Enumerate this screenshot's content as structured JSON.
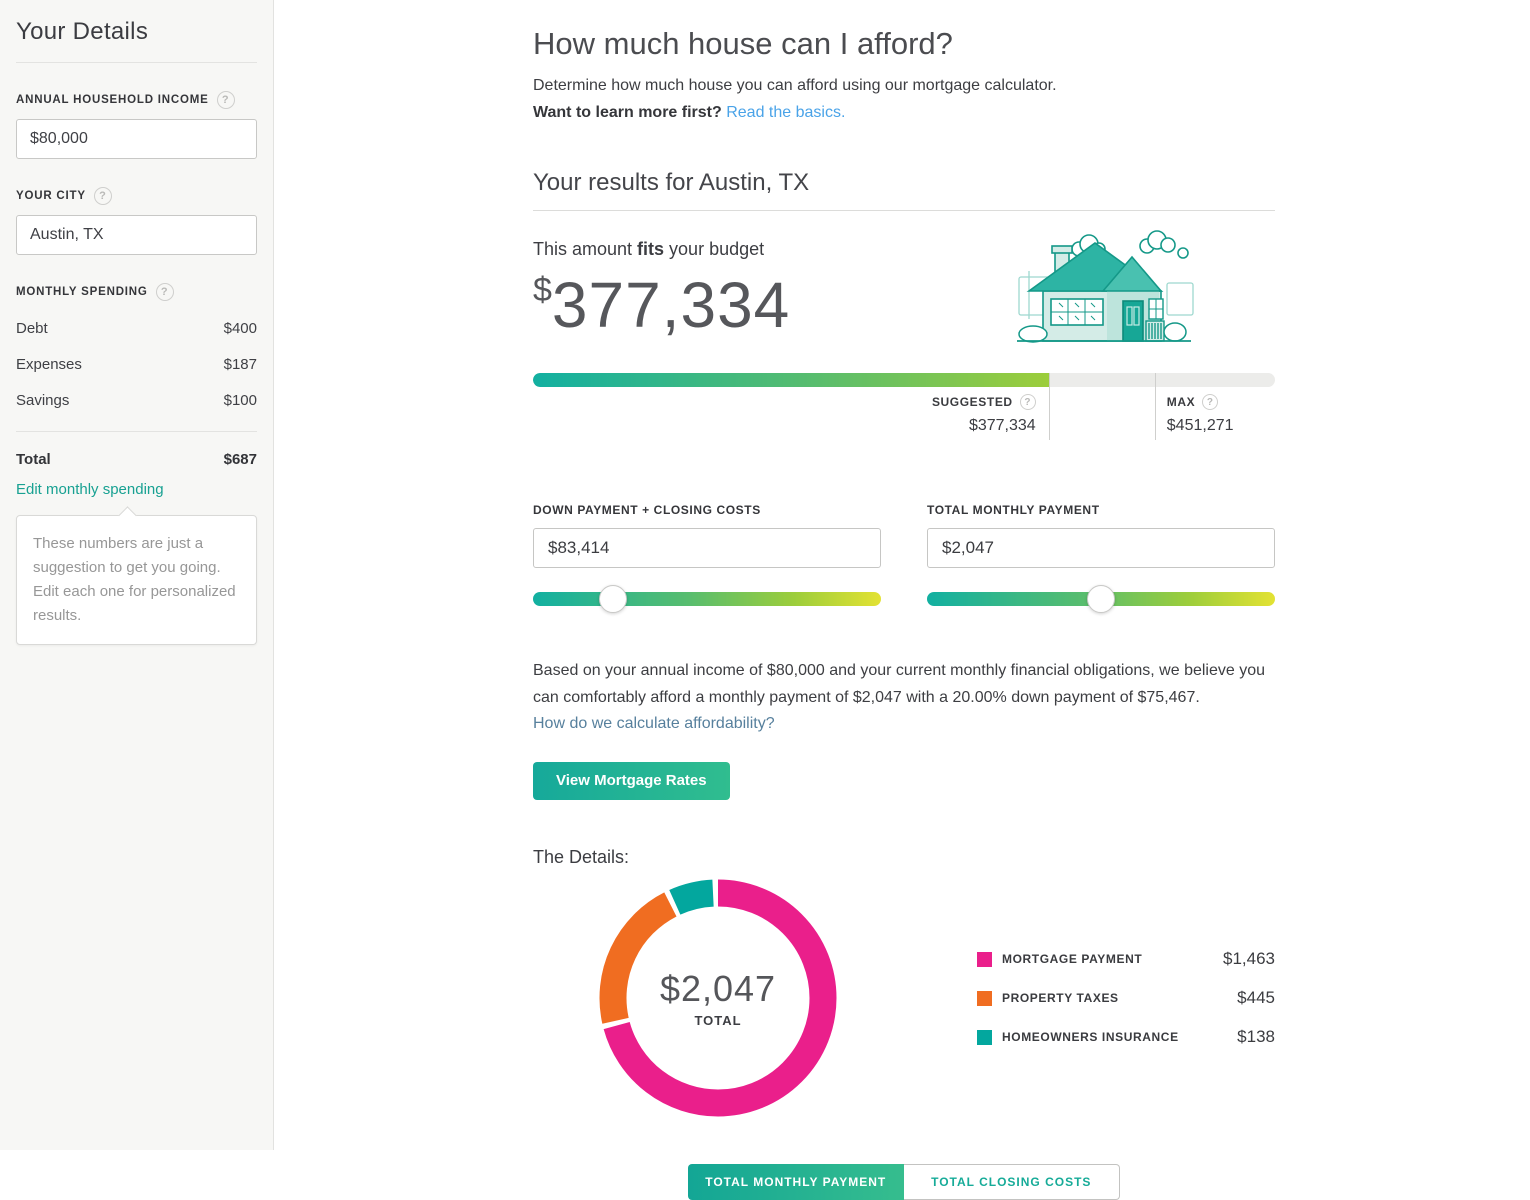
{
  "sidebar": {
    "title": "Your Details",
    "income_label": "ANNUAL HOUSEHOLD INCOME",
    "income_value": "$80,000",
    "city_label": "YOUR CITY",
    "city_value": "Austin, TX",
    "spending_label": "MONTHLY SPENDING",
    "spending_rows": [
      {
        "label": "Debt",
        "value": "$400"
      },
      {
        "label": "Expenses",
        "value": "$187"
      },
      {
        "label": "Savings",
        "value": "$100"
      }
    ],
    "total_label": "Total",
    "total_value": "$687",
    "edit_link": "Edit monthly spending",
    "tooltip": "These numbers are just a suggestion to get you going. Edit each one for personalized results."
  },
  "header": {
    "title": "How much house can I afford?",
    "subtitle": "Determine how much house you can afford using our mortgage calculator.",
    "learn_more_prompt": "Want to learn more first?",
    "learn_more_link": "Read the basics."
  },
  "results": {
    "heading": "Your results for Austin, TX",
    "fit_prefix": "This amount ",
    "fit_word": "fits",
    "fit_suffix": " your budget",
    "amount_currency": "$",
    "amount": "377,334",
    "bar": {
      "suggested_label": "SUGGESTED",
      "suggested_value": "$377,334",
      "max_label": "MAX",
      "max_value": "$451,271",
      "fill_percent": 69.5,
      "max_percent": 83.8
    },
    "down_payment_label": "DOWN PAYMENT + CLOSING COSTS",
    "down_payment_value": "$83,414",
    "down_payment_slider_percent": 23,
    "monthly_payment_label": "TOTAL MONTHLY PAYMENT",
    "monthly_payment_value": "$2,047",
    "monthly_payment_slider_percent": 50,
    "explanation": "Based on your annual income of $80,000 and your current monthly financial obligations, we believe you can comfortably afford a monthly payment of $2,047 with a 20.00% down payment of $75,467.",
    "calc_link": "How do we calculate affordability?",
    "cta_button": "View Mortgage Rates"
  },
  "details": {
    "heading": "The Details:",
    "center_value": "$2,047",
    "center_label": "TOTAL",
    "tabs": [
      {
        "label": "TOTAL MONTHLY PAYMENT",
        "active": true
      },
      {
        "label": "TOTAL CLOSING COSTS",
        "active": false
      }
    ]
  },
  "chart_data": {
    "type": "pie",
    "donut": true,
    "title": "The Details:",
    "center_text": "$2,047 TOTAL",
    "total": 2047,
    "legend_position": "right",
    "series": [
      {
        "name": "MORTGAGE PAYMENT",
        "value": 1463,
        "display": "$1,463",
        "color": "#ea1f8b"
      },
      {
        "name": "PROPERTY TAXES",
        "value": 445,
        "display": "$445",
        "color": "#f06d21"
      },
      {
        "name": "HOMEOWNERS INSURANCE",
        "value": 138,
        "display": "$138",
        "color": "#03a79e"
      }
    ]
  },
  "colors": {
    "accent_teal": "#12b0a1",
    "accent_green": "#9ccd3b",
    "accent_yellow": "#e3e233",
    "link_blue": "#4aa3e8",
    "link_steel": "#57809d",
    "link_teal": "#18a192",
    "sidebar_bg": "#f7f7f5"
  },
  "icons": {
    "help_glyph": "?"
  }
}
